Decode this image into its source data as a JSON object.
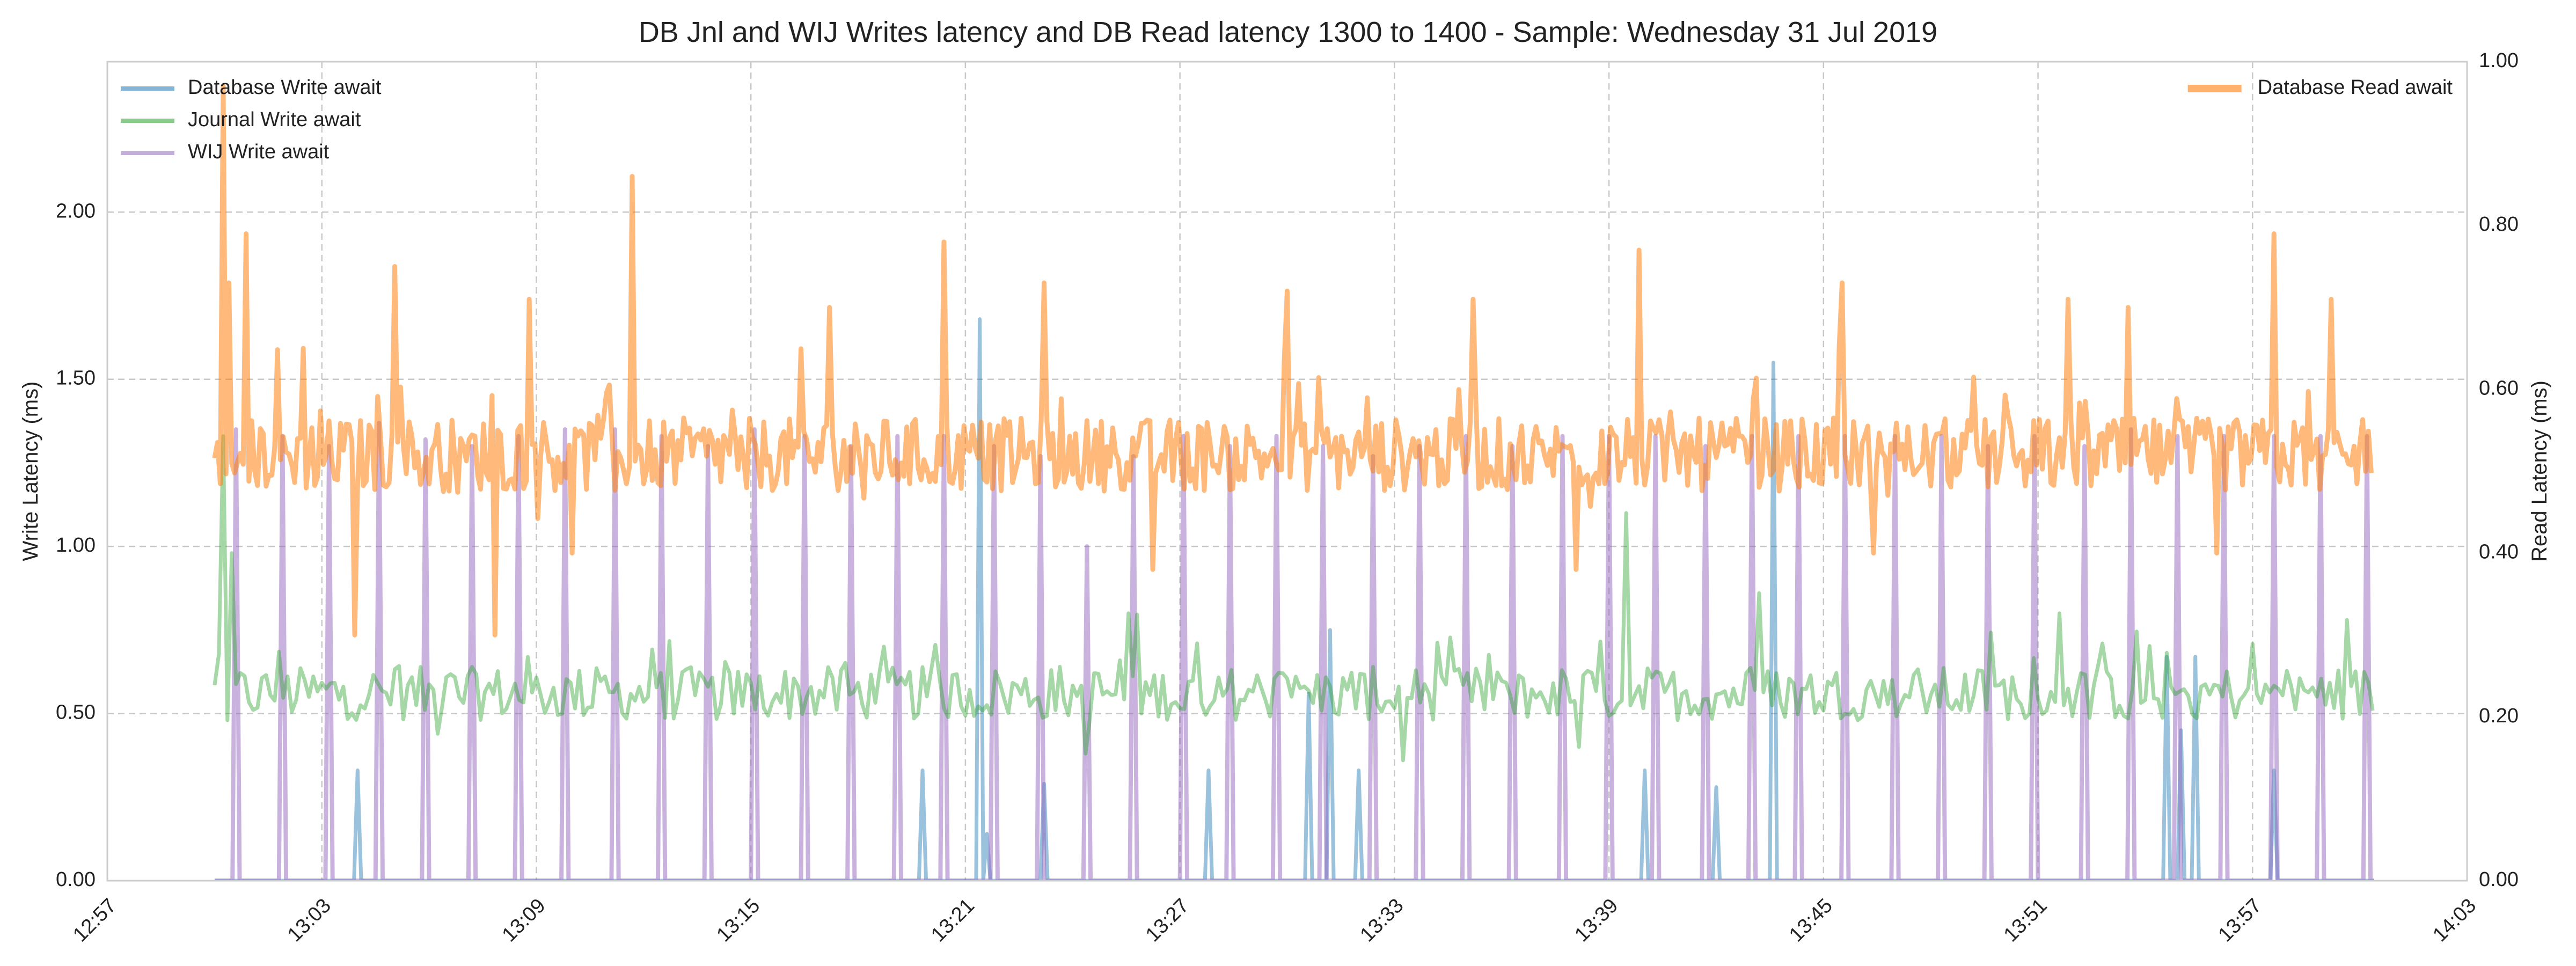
{
  "chart_data": {
    "type": "line",
    "title": "DB Jnl and WIJ Writes latency and DB Read latency 1300 to 1400 - Sample: Wednesday 31 Jul 2019",
    "xlabel": "",
    "y_left": {
      "label": "Write Latency (ms)",
      "lim": [
        0,
        2.45
      ],
      "ticks": [
        0.0,
        0.5,
        1.0,
        1.5,
        2.0
      ],
      "tick_labels": [
        "0.00",
        "0.50",
        "1.00",
        "1.50",
        "2.00"
      ]
    },
    "y_right": {
      "label": "Read Latency (ms)",
      "lim": [
        0,
        1.0
      ],
      "ticks": [
        0.0,
        0.2,
        0.4,
        0.6,
        0.8,
        1.0
      ],
      "tick_labels": [
        "0.00",
        "0.20",
        "0.40",
        "0.60",
        "0.80",
        "1.00"
      ]
    },
    "x_axis": {
      "lim": [
        "12:57",
        "14:03"
      ],
      "ticks": [
        "12:57",
        "13:03",
        "13:09",
        "13:15",
        "13:21",
        "13:27",
        "13:33",
        "13:39",
        "13:45",
        "13:51",
        "13:57",
        "14:03"
      ]
    },
    "grid": true,
    "legend_left": {
      "placement": "top-left",
      "entries": [
        "Database Write await",
        "Journal Write await",
        "WIJ Write await"
      ]
    },
    "legend_right": {
      "placement": "top-right",
      "entries": [
        "Database Read await"
      ]
    },
    "series": [
      {
        "name": "Database Write await",
        "axis": "left",
        "color": "#1f77b4",
        "spikes": [
          [
            "13:04:00",
            0.33
          ],
          [
            "13:19:48",
            0.33
          ],
          [
            "13:21:24",
            1.68
          ],
          [
            "13:21:36",
            0.14
          ],
          [
            "13:23:12",
            0.29
          ],
          [
            "13:27:48",
            0.33
          ],
          [
            "13:30:36",
            0.56
          ],
          [
            "13:31:12",
            0.75
          ],
          [
            "13:32:00",
            0.33
          ],
          [
            "13:40:00",
            0.33
          ],
          [
            "13:42:00",
            0.28
          ],
          [
            "13:43:36",
            1.55
          ],
          [
            "13:54:36",
            0.67
          ],
          [
            "13:55:00",
            0.45
          ],
          [
            "13:55:24",
            0.67
          ],
          [
            "13:57:36",
            0.33
          ]
        ]
      },
      {
        "name": "Journal Write await",
        "axis": "left",
        "color": "#2ca02c",
        "baseline": 0.56,
        "spikes": [
          [
            "13:00:12",
            1.33
          ],
          [
            "13:00:30",
            0.98
          ],
          [
            "13:25:30",
            0.8
          ],
          [
            "13:39:30",
            1.1
          ],
          [
            "13:43:12",
            0.86
          ],
          [
            "13:51:36",
            0.8
          ],
          [
            "13:59:36",
            0.78
          ]
        ],
        "dips": [
          [
            "13:00:18",
            0.48
          ],
          [
            "13:33:12",
            0.36
          ],
          [
            "13:24:24",
            0.38
          ],
          [
            "13:38:12",
            0.4
          ]
        ]
      },
      {
        "name": "WIJ Write await",
        "axis": "left",
        "color": "#9467bd",
        "spikes": [
          [
            "13:00:36",
            1.35
          ],
          [
            "13:01:54",
            1.33
          ],
          [
            "13:03:12",
            1.3
          ],
          [
            "13:04:36",
            1.37
          ],
          [
            "13:05:54",
            1.32
          ],
          [
            "13:07:12",
            1.3
          ],
          [
            "13:08:30",
            1.33
          ],
          [
            "13:09:48",
            1.35
          ],
          [
            "13:11:12",
            1.35
          ],
          [
            "13:12:30",
            1.33
          ],
          [
            "13:13:48",
            1.3
          ],
          [
            "13:15:06",
            1.35
          ],
          [
            "13:16:30",
            1.33
          ],
          [
            "13:17:48",
            1.3
          ],
          [
            "13:19:06",
            1.33
          ],
          [
            "13:20:24",
            1.33
          ],
          [
            "13:21:48",
            1.3
          ],
          [
            "13:23:06",
            1.27
          ],
          [
            "13:24:24",
            1.0
          ],
          [
            "13:25:42",
            1.27
          ],
          [
            "13:27:06",
            1.33
          ],
          [
            "13:28:24",
            1.3
          ],
          [
            "13:29:42",
            1.33
          ],
          [
            "13:31:00",
            1.3
          ],
          [
            "13:32:24",
            1.27
          ],
          [
            "13:33:42",
            1.3
          ],
          [
            "13:35:00",
            1.33
          ],
          [
            "13:36:18",
            1.3
          ],
          [
            "13:37:42",
            1.33
          ],
          [
            "13:39:00",
            1.33
          ],
          [
            "13:40:18",
            1.33
          ],
          [
            "13:41:42",
            1.3
          ],
          [
            "13:43:00",
            1.33
          ],
          [
            "13:44:18",
            1.33
          ],
          [
            "13:45:36",
            1.33
          ],
          [
            "13:47:00",
            1.33
          ],
          [
            "13:48:18",
            1.33
          ],
          [
            "13:49:36",
            1.3
          ],
          [
            "13:50:54",
            1.33
          ],
          [
            "13:52:18",
            1.3
          ],
          [
            "13:53:36",
            1.35
          ],
          [
            "13:54:54",
            1.33
          ],
          [
            "13:56:12",
            1.33
          ],
          [
            "13:57:36",
            1.33
          ],
          [
            "13:58:54",
            1.33
          ],
          [
            "14:00:12",
            1.33
          ]
        ]
      },
      {
        "name": "Database Read await",
        "axis": "right",
        "color": "#ff7f0e",
        "baseline": 0.52,
        "spikes": [
          [
            "13:00:12",
            0.97
          ],
          [
            "13:00:24",
            0.73
          ],
          [
            "13:00:54",
            0.79
          ],
          [
            "13:02:30",
            0.65
          ],
          [
            "13:05:00",
            0.75
          ],
          [
            "13:08:48",
            0.71
          ],
          [
            "13:11:42",
            0.86
          ],
          [
            "13:17:12",
            0.7
          ],
          [
            "13:20:24",
            0.78
          ],
          [
            "13:23:12",
            0.73
          ],
          [
            "13:30:00",
            0.72
          ],
          [
            "13:35:12",
            0.71
          ],
          [
            "13:39:48",
            0.77
          ],
          [
            "13:45:30",
            0.73
          ],
          [
            "13:51:48",
            0.71
          ],
          [
            "13:53:30",
            0.7
          ],
          [
            "13:57:36",
            0.79
          ],
          [
            "13:59:12",
            0.71
          ]
        ],
        "dips": [
          [
            "13:03:54",
            0.3
          ],
          [
            "13:07:48",
            0.3
          ],
          [
            "13:10:00",
            0.4
          ],
          [
            "13:26:12",
            0.38
          ],
          [
            "13:38:06",
            0.38
          ],
          [
            "13:46:24",
            0.4
          ],
          [
            "13:56:00",
            0.4
          ]
        ]
      }
    ]
  }
}
